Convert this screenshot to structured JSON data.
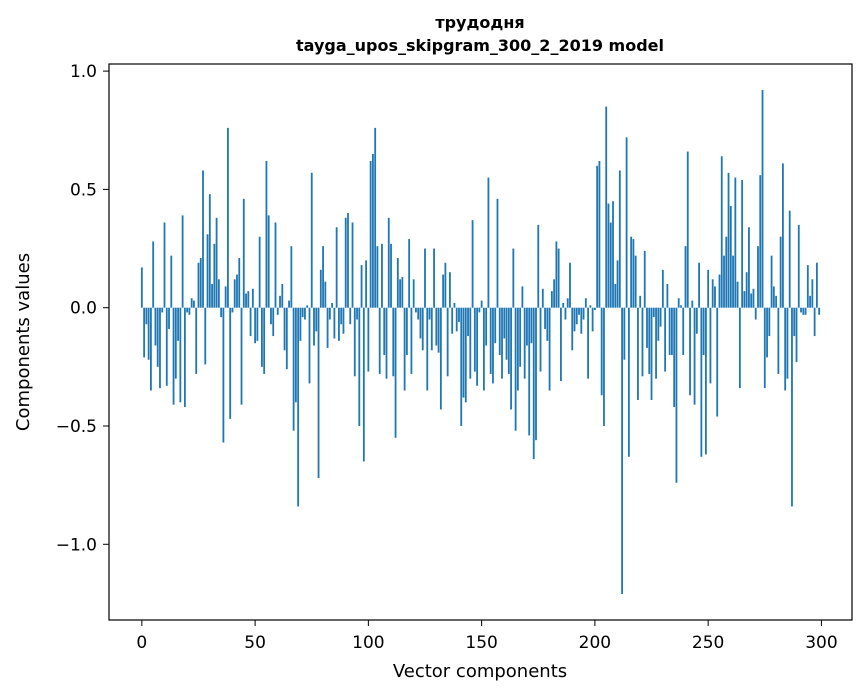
{
  "chart_data": {
    "type": "bar",
    "title": "трудодня",
    "subtitle": "tayga_upos_skipgram_300_2_2019 model",
    "xlabel": "Vector components",
    "ylabel": "Components values",
    "xlim": [
      -14.5,
      313.5
    ],
    "ylim": [
      -1.32,
      1.03
    ],
    "xticks": [
      0,
      50,
      100,
      150,
      200,
      250,
      300
    ],
    "xtick_labels": [
      "0",
      "50",
      "100",
      "150",
      "200",
      "250",
      "300"
    ],
    "yticks": [
      -1.0,
      -0.5,
      0.0,
      0.5,
      1.0
    ],
    "ytick_labels": [
      "−1.0",
      "−0.5",
      "0.0",
      "0.5",
      "1.0"
    ],
    "bar_color": "#1f77b4",
    "series": [
      {
        "name": "трудодня",
        "values": [
          0.17,
          -0.21,
          -0.07,
          -0.22,
          -0.35,
          0.28,
          -0.16,
          -0.25,
          -0.34,
          -0.02,
          0.36,
          -0.33,
          -0.09,
          0.22,
          -0.41,
          -0.3,
          -0.14,
          -0.4,
          0.39,
          -0.42,
          -0.02,
          -0.03,
          0.04,
          0.03,
          -0.28,
          0.19,
          0.21,
          0.58,
          -0.24,
          0.31,
          0.48,
          0.1,
          0.27,
          0.38,
          0.12,
          -0.04,
          -0.57,
          0.09,
          0.76,
          -0.47,
          -0.02,
          0.12,
          0.14,
          0.21,
          -0.41,
          0.46,
          0.06,
          0.07,
          -0.12,
          0.08,
          -0.15,
          -0.14,
          0.3,
          -0.25,
          -0.28,
          0.62,
          0.39,
          -0.07,
          -0.12,
          0.36,
          -0.03,
          0.05,
          0.1,
          -0.18,
          -0.26,
          0.03,
          0.26,
          -0.52,
          -0.4,
          -0.84,
          -0.14,
          -0.04,
          -0.05,
          0.01,
          -0.32,
          0.57,
          -0.16,
          -0.1,
          -0.72,
          0.16,
          0.26,
          0.11,
          -0.17,
          -0.05,
          0.02,
          -0.13,
          0.34,
          -0.14,
          -0.07,
          -0.11,
          0.38,
          0.4,
          -0.07,
          0.36,
          -0.29,
          -0.05,
          -0.5,
          0.18,
          -0.65,
          0.2,
          -0.27,
          0.62,
          0.65,
          0.76,
          0.26,
          -0.28,
          0.27,
          -0.2,
          -0.3,
          0.38,
          0.27,
          -0.29,
          -0.55,
          0.21,
          0.12,
          0.13,
          -0.35,
          -0.2,
          0.29,
          -0.28,
          0.12,
          -0.02,
          -0.05,
          -0.13,
          -0.18,
          0.25,
          -0.35,
          -0.05,
          -0.18,
          0.25,
          -0.16,
          -0.19,
          -0.43,
          0.14,
          0.19,
          -0.29,
          0.15,
          -0.11,
          0.02,
          -0.1,
          -0.06,
          -0.5,
          -0.38,
          -0.4,
          -0.12,
          -0.3,
          0.37,
          -0.27,
          -0.33,
          -0.02,
          0.03,
          -0.35,
          -0.16,
          0.55,
          -0.28,
          -0.32,
          -0.15,
          0.46,
          -0.2,
          -0.3,
          -0.13,
          -0.22,
          -0.28,
          -0.43,
          0.25,
          -0.52,
          -0.35,
          -0.25,
          0.09,
          -0.3,
          -0.16,
          -0.54,
          -0.15,
          -0.64,
          -0.56,
          0.35,
          -0.27,
          0.08,
          -0.09,
          -0.14,
          -0.35,
          0.07,
          0.12,
          0.28,
          0.25,
          -0.31,
          0.02,
          -0.05,
          0.04,
          0.19,
          -0.18,
          -0.1,
          -0.07,
          -0.03,
          -0.11,
          -0.05,
          0.04,
          -0.3,
          0.01,
          -0.1,
          -0.01,
          0.6,
          0.62,
          -0.37,
          -0.5,
          0.85,
          0.44,
          0.36,
          0.45,
          0.1,
          0.2,
          0.58,
          -1.21,
          -0.22,
          0.72,
          -0.63,
          0.3,
          0.29,
          0.22,
          -0.39,
          0.05,
          -0.29,
          0.24,
          -0.17,
          -0.28,
          -0.39,
          -0.04,
          -0.3,
          -0.14,
          -0.08,
          0.16,
          -0.27,
          0.1,
          -0.2,
          -0.2,
          -0.42,
          -0.74,
          0.04,
          0.01,
          -0.2,
          0.26,
          0.66,
          -0.37,
          0.03,
          -0.41,
          -0.11,
          0.19,
          -0.63,
          -0.2,
          -0.62,
          0.16,
          -0.32,
          0.12,
          0.09,
          -0.46,
          0.14,
          0.64,
          0.22,
          0.3,
          0.57,
          0.43,
          0.22,
          0.55,
          0.11,
          -0.34,
          0.54,
          0.07,
          0.15,
          0.34,
          0.06,
          0.08,
          -0.05,
          0.26,
          0.56,
          0.92,
          -0.34,
          -0.21,
          -0.12,
          0.22,
          0.09,
          0.05,
          -0.28,
          0.3,
          0.61,
          -0.35,
          -0.3,
          0.41,
          -0.84,
          -0.12,
          -0.23,
          0.35,
          -0.02,
          -0.03,
          -0.03,
          0.18,
          0.05,
          0.12,
          -0.12,
          0.19,
          -0.03
        ]
      }
    ]
  }
}
